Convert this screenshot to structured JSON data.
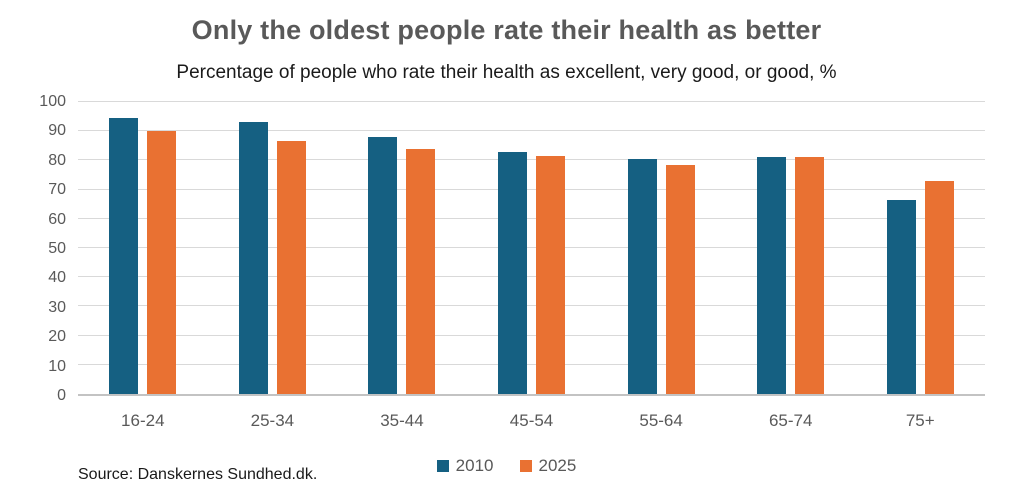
{
  "chart_data": {
    "type": "bar",
    "title": "Only the oldest people rate their health as better",
    "subtitle": "Percentage of people who rate their health as excellent, very good, or good, %",
    "categories": [
      "16-24",
      "25-34",
      "35-44",
      "45-54",
      "55-64",
      "65-74",
      "75+"
    ],
    "series": [
      {
        "name": "2010",
        "color": "#156082",
        "values": [
          94.5,
          93,
          88,
          83,
          80.5,
          81,
          66.5
        ]
      },
      {
        "name": "2025",
        "color": "#E97132",
        "values": [
          90,
          86.5,
          84,
          81.5,
          78.5,
          81,
          73
        ]
      }
    ],
    "xlabel": "",
    "ylabel": "",
    "ylim": [
      0,
      100
    ],
    "yticks": [
      0,
      10,
      20,
      30,
      40,
      50,
      60,
      70,
      80,
      90,
      100
    ],
    "grid": true,
    "legend_position": "bottom",
    "source": "Source: Danskernes Sundhed.dk.",
    "style_colors": {
      "title_text": "#595959",
      "subtitle_text": "#1A1A1A",
      "axis_label_text": "#595959",
      "gridline": "#D9D9D9",
      "axis_line": "#C3C3C3",
      "background": "#FFFFFF"
    }
  }
}
